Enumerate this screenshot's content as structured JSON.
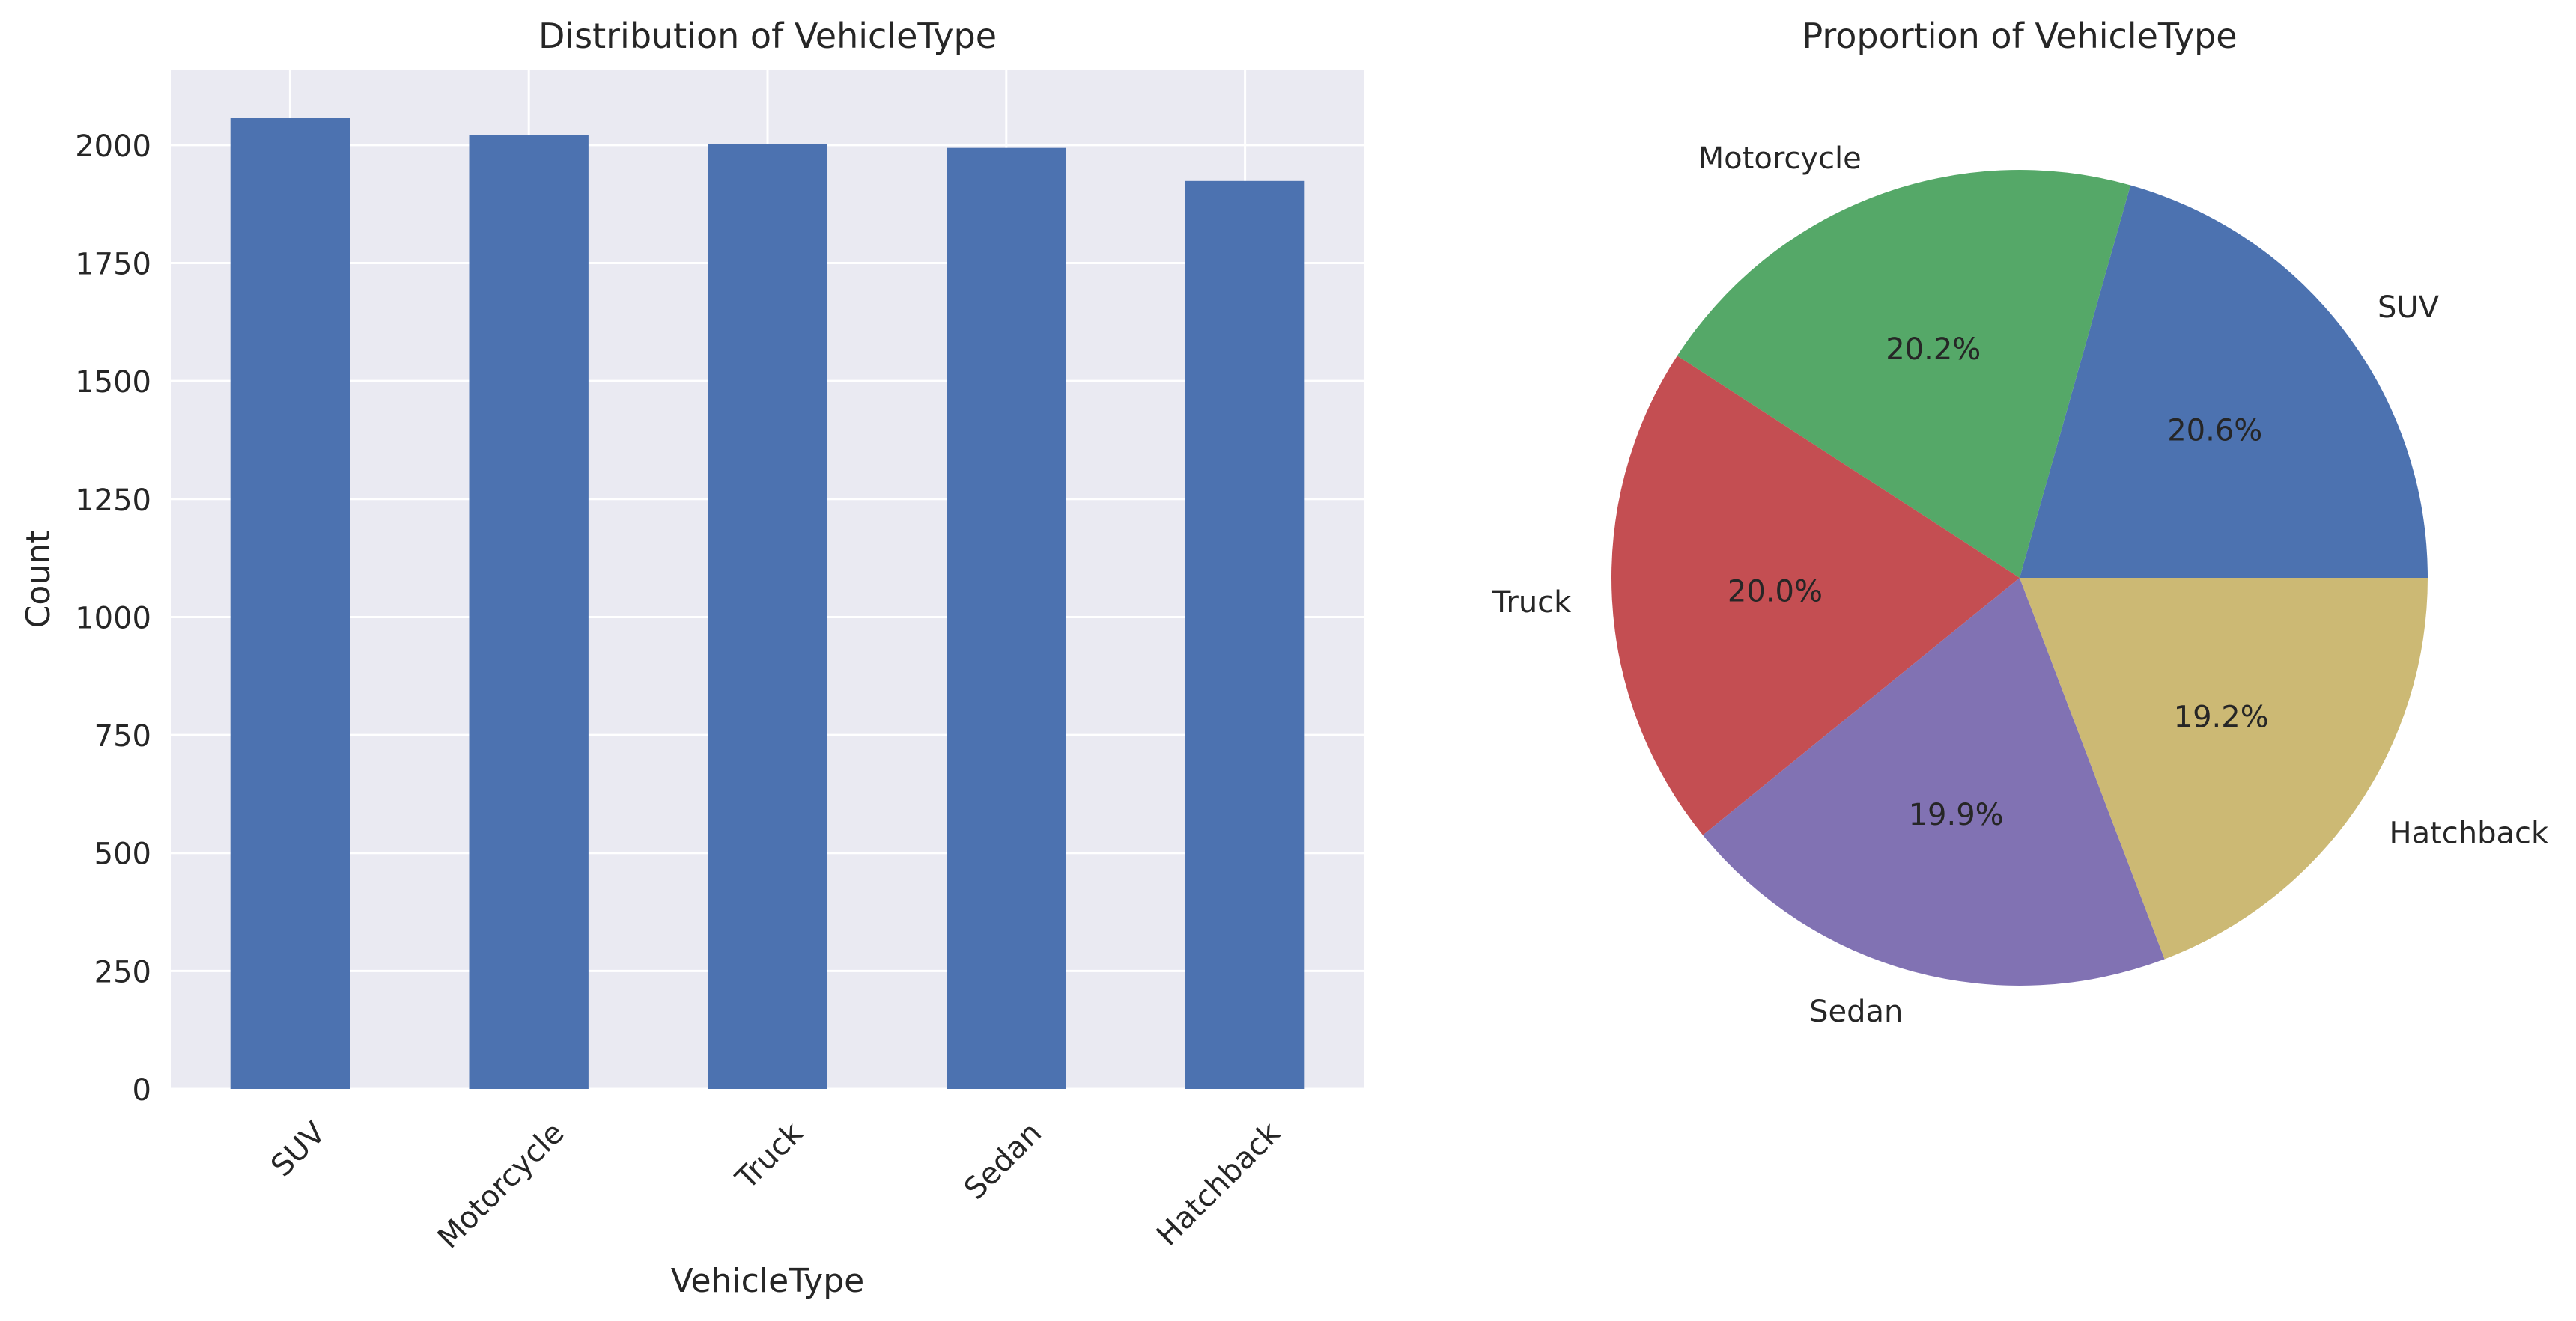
{
  "chart_data": [
    {
      "type": "bar",
      "title": "Distribution of VehicleType",
      "xlabel": "VehicleType",
      "ylabel": "Count",
      "categories": [
        "SUV",
        "Motorcycle",
        "Truck",
        "Sedan",
        "Hatchback"
      ],
      "values": [
        2058,
        2022,
        2002,
        1994,
        1924
      ],
      "ylim": [
        0,
        2160
      ],
      "yticks": [
        0,
        250,
        500,
        750,
        1000,
        1250,
        1500,
        1750,
        2000
      ],
      "ytick_labels": [
        "0",
        "250",
        "500",
        "750",
        "1000",
        "1250",
        "1500",
        "1750",
        "2000"
      ],
      "tick_rotation": 45,
      "grid": true,
      "bar_color": "#4c72b0",
      "axes_facecolor": "#eaeaf2",
      "grid_color": "#ffffff"
    },
    {
      "type": "pie",
      "title": "Proportion of VehicleType",
      "labels": [
        "SUV",
        "Motorcycle",
        "Truck",
        "Sedan",
        "Hatchback"
      ],
      "values": [
        20.6,
        20.2,
        20.0,
        19.9,
        19.2
      ],
      "pct_labels": [
        "20.6%",
        "20.2%",
        "20.0%",
        "19.9%",
        "19.2%"
      ],
      "colors": [
        "#4c72b0",
        "#55a868",
        "#c44e52",
        "#8172b3",
        "#ccb974"
      ],
      "start_angle": 0,
      "direction": "counterclockwise"
    }
  ]
}
